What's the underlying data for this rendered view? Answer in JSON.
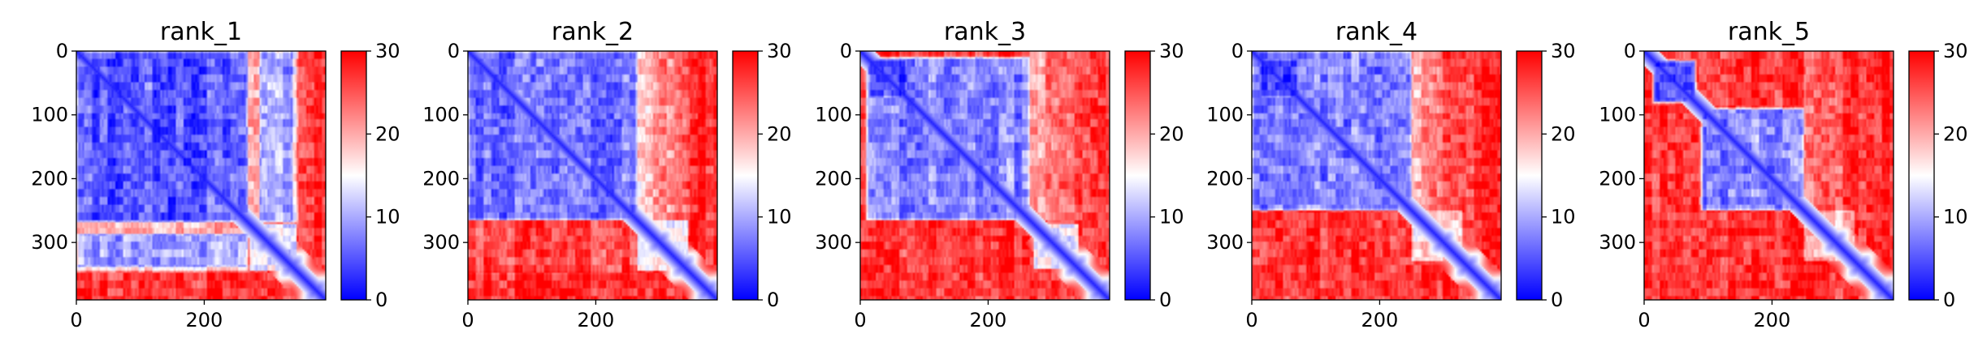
{
  "chart_data": {
    "type": "heatmap",
    "panels": [
      {
        "title": "rank_1",
        "variant": 1
      },
      {
        "title": "rank_2",
        "variant": 2
      },
      {
        "title": "rank_3",
        "variant": 3
      },
      {
        "title": "rank_4",
        "variant": 4
      },
      {
        "title": "rank_5",
        "variant": 5
      }
    ],
    "n": 390,
    "x_ticks": [
      0,
      200
    ],
    "y_ticks": [
      0,
      100,
      200,
      300
    ],
    "colorbar": {
      "range": [
        0,
        30
      ],
      "ticks": [
        0,
        10,
        20,
        30
      ],
      "colors": {
        "low": "#0000ff",
        "mid": "#ffffff",
        "high": "#ff0000"
      }
    },
    "grid": false,
    "legend": "none"
  }
}
